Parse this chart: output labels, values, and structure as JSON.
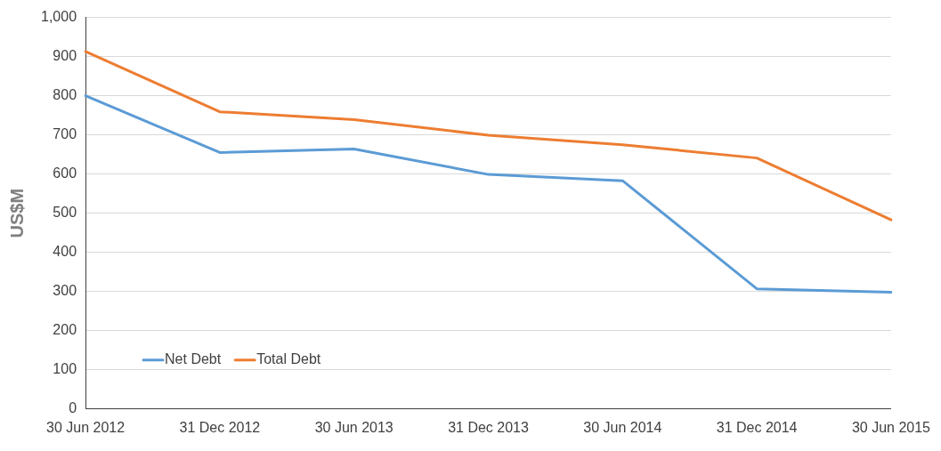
{
  "chart_data": {
    "type": "line",
    "ylabel": "US$M",
    "categories": [
      "30 Jun 2012",
      "31 Dec 2012",
      "30 Jun 2013",
      "31 Dec 2013",
      "30 Jun 2014",
      "31 Dec 2014",
      "30 Jun 2015"
    ],
    "series": [
      {
        "name": "Net Debt",
        "color": "#5b9bd5",
        "values": [
          800,
          655,
          664,
          599,
          583,
          307,
          298
        ]
      },
      {
        "name": "Total Debt",
        "color": "#ed7d31",
        "values": [
          913,
          759,
          739,
          699,
          675,
          641,
          483
        ]
      }
    ],
    "ylim": [
      0,
      1000
    ],
    "yticks": [
      0,
      100,
      200,
      300,
      400,
      500,
      600,
      700,
      800,
      900,
      {
        "value": 1000,
        "label": "1,000"
      }
    ],
    "grid": "y",
    "legend": "bottom left",
    "marker": "none",
    "line_style": "solid"
  }
}
